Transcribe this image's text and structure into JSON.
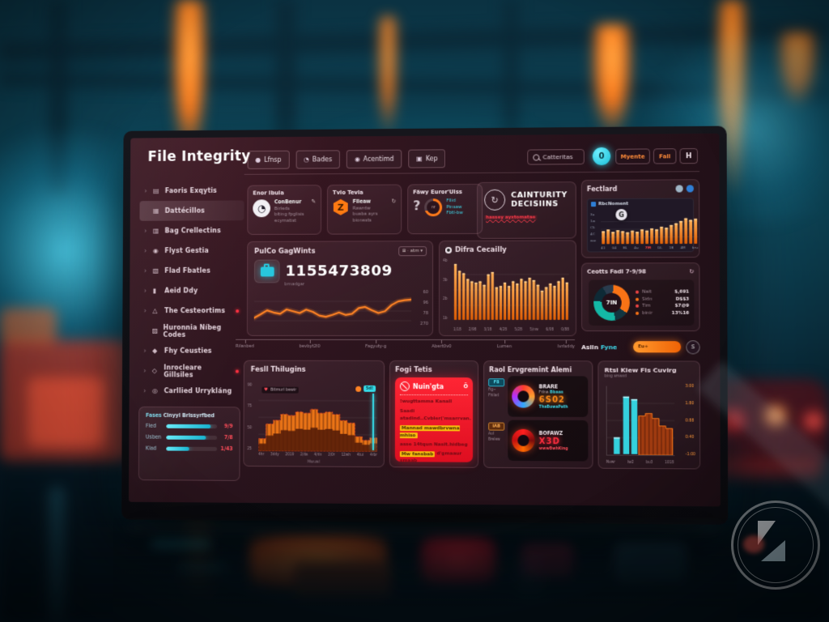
{
  "app": {
    "title": "File Integrity"
  },
  "header": {
    "nav": [
      {
        "icon": "●",
        "label": "Lfnsp"
      },
      {
        "icon": "◔",
        "label": "Bades"
      },
      {
        "icon": "◉",
        "label": "Acentimd"
      },
      {
        "icon": "▣",
        "label": "Kep"
      }
    ],
    "search": {
      "value": "Catteritas"
    },
    "badge": "0",
    "action1": "Myente",
    "action2": "Fail",
    "action3": "H"
  },
  "sidebar": {
    "items": [
      {
        "icon": "▤",
        "label": "Faoris Exqytis",
        "chevron": true
      },
      {
        "icon": "▦",
        "label": "Dattécillos",
        "active": true
      },
      {
        "icon": "▥",
        "label": "Bag Crellectins",
        "chevron": true
      },
      {
        "icon": "◉",
        "label": "Flyst Gestia",
        "chevron": true
      },
      {
        "icon": "▧",
        "label": "Flad Fbatles",
        "chevron": true
      },
      {
        "icon": "▮",
        "label": "Aeid Ddy",
        "chevron": true
      },
      {
        "icon": "△",
        "label": "The Cesteortims",
        "chevron": true,
        "dot": true
      },
      {
        "icon": "▨",
        "label": "Huronnia Níbeg Codes"
      },
      {
        "icon": "◆",
        "label": "Fhy Ceusties",
        "chevron": true
      },
      {
        "icon": "◇",
        "label": "Inrocleare Gillsiles",
        "chevron": true,
        "dot": true
      },
      {
        "icon": "◎",
        "label": "Carllied Urrykláng",
        "chevron": true
      }
    ],
    "panel": {
      "title_a": "Fases",
      "title_b": "Cinyyl Brissyrfbed",
      "bars": [
        {
          "label": "Fled",
          "pct": 88,
          "value": "9/9"
        },
        {
          "label": "Usben",
          "pct": 78,
          "value": "7/8"
        },
        {
          "label": "Klad",
          "pct": 46,
          "value": "1/43"
        }
      ]
    }
  },
  "stat_cards": [
    {
      "title": "Enor Ibuia",
      "icon": "clock",
      "corner": "✎",
      "lines": [
        {
          "t": "ConBenur",
          "c": "light"
        },
        {
          "t": "Birleds",
          "c": "muted"
        },
        {
          "t": "biting fpglisis",
          "c": "muted"
        },
        {
          "t": "ecymatist",
          "c": "muted"
        }
      ]
    },
    {
      "title": "Tvio Tevia",
      "icon": "hex",
      "corner": "↻",
      "lines": [
        {
          "t": "Fiieaw",
          "c": "light"
        },
        {
          "t": "Rawrdw",
          "c": "muted"
        },
        {
          "t": "buaba ayrs",
          "c": "muted"
        },
        {
          "t": "bionests",
          "c": "muted"
        }
      ]
    },
    {
      "title": "Fäwy Euror'Uiss",
      "icon": "gauge",
      "corner": "",
      "lines": [
        {
          "t": "Fllid",
          "c": "cyan"
        },
        {
          "t": "Pinsaw",
          "c": "cyan"
        },
        {
          "t": "Fbtl-bw",
          "c": "cyan"
        }
      ]
    }
  ],
  "security_card": {
    "line1": "CAINTURITY",
    "line2": "DECISIINS",
    "alert": "hassey ayxtomatae"
  },
  "fect_card": {
    "title": "Fectlard",
    "inner_label": "RbcNoment",
    "badge": "G",
    "yticks": [
      "3u",
      "1w",
      "C5",
      "4C",
      "ww"
    ],
    "xticks": [
      "41",
      "04",
      "BL",
      "4u",
      "7M",
      "DL",
      "1B",
      "4M",
      "bru"
    ],
    "red_xtick_index": 4
  },
  "pulse_card": {
    "title": "PulCo GagWints",
    "control": "⊞ · atm ▾",
    "number": "1155473809",
    "subtitle": "brnadgar",
    "yticks": [
      "60",
      "96",
      "78",
      "270"
    ]
  },
  "difra_card": {
    "title": "Difra Cecailly",
    "yticks": [
      "4b",
      "3b",
      "2b",
      "1b"
    ],
    "xticks": [
      "1/18",
      "2/98",
      "3/18",
      "4/28",
      "5/28",
      "5/nw",
      "6/08",
      "0/88"
    ]
  },
  "donut_card": {
    "title": "Ceotts Fadi 7-9/98",
    "refresh": "↻",
    "center": "7IN",
    "legend": [
      {
        "dot": "#ef4444",
        "label": "Nait",
        "value": "$,691"
      },
      {
        "dot": "#f97316",
        "label": "Sidn",
        "value": "D$$3"
      },
      {
        "dot": "#ef4444",
        "label": "Tim",
        "value": "$7@9"
      },
      {
        "dot": "#f97316",
        "label": "binir",
        "value": "13%16"
      }
    ]
  },
  "toggle_row": {
    "label_a": "Aslin",
    "label_b": "Fyne",
    "pill": "Eu+",
    "button": "S"
  },
  "timeline": {
    "ticks": [
      "Rilanbed",
      "bevbyt2l0",
      "Fagyuty-g",
      "Abert0v0",
      "Lumen",
      "Ivrlsddy"
    ]
  },
  "area_card": {
    "title": "Fesll Thilugins",
    "legend_icon": "♥",
    "legend": "Bitmurl bewir",
    "chip": "5d!",
    "yticks": [
      "90",
      "75",
      "50",
      "25"
    ],
    "xticks": [
      "4hr",
      "3ddy",
      "2019",
      "2/da",
      "4/dn",
      "2/0r",
      "12wh",
      "4tui",
      "4rbr"
    ],
    "xlabel": "Mwuwl"
  },
  "alert_card": {
    "title": "Fogi Tetis",
    "panel_title": "Nuin'gta",
    "corner": "Ö",
    "lines": [
      {
        "text": "!wugttamma Kanall",
        "style": "dark"
      },
      {
        "text": "Saadi atadind..Cvbler('msarrvan.",
        "style": "dark"
      },
      {
        "text": "Mannad mawdbrvwna mhiso",
        "style": "highlight"
      },
      {
        "text": "asse 14tqun Nasit.hidbeg",
        "style": "dark"
      },
      {
        "text": "Mw fansbab d'gmaaur smaab",
        "style": "mixed"
      }
    ]
  },
  "env_alerts": {
    "title": "Raol Ervgremint Alemi",
    "rows": [
      {
        "chip": "F8",
        "chip_color": "cyan",
        "side": [
          "Fig~",
          "Fhilad"
        ],
        "title": "BRARE",
        "sub": "Fdna",
        "sub_accent": "Bbaas",
        "big": "6S02",
        "big_color": "#ff8c1a",
        "foot": "ThaBuwaPath",
        "foot_color": "#3fd6e8",
        "swirl": "multi"
      },
      {
        "chip": "IAB",
        "chip_color": "orange",
        "side": [
          "Aul",
          "Brelew"
        ],
        "title": "BOFAWZ",
        "sub": "",
        "sub_accent": "",
        "big": "X3D",
        "big_color": "#ff2d3e",
        "foot": "wwwBwhKing",
        "foot_color": "#ff4d5a",
        "swirl": "red"
      }
    ]
  },
  "cover_card": {
    "title": "Rtsl Klew Fls Cuvirg",
    "subtitle": "bing smaxd",
    "yticks": [
      "3:00",
      "1:80",
      "0:88",
      "0:40",
      "-1:00"
    ],
    "xticks": [
      "Nvwr",
      "tw2",
      "bu3",
      "1018"
    ]
  },
  "chart_data": {
    "pulse": {
      "type": "line",
      "max": 100,
      "color": "#ff8324",
      "values": [
        30,
        42,
        55,
        48,
        44,
        58,
        52,
        46,
        57,
        50,
        38,
        34,
        40,
        48,
        40,
        44,
        62,
        66,
        55,
        46,
        52,
        72,
        84,
        88,
        90
      ]
    },
    "difra": {
      "type": "bar",
      "max": 100,
      "values": [
        96,
        84,
        80,
        70,
        66,
        64,
        66,
        60,
        78,
        82,
        56,
        58,
        64,
        58,
        66,
        62,
        70,
        66,
        72,
        68,
        60,
        50,
        56,
        62,
        58,
        66,
        72,
        64
      ]
    },
    "fect": {
      "type": "bar",
      "max": 100,
      "values": [
        46,
        52,
        44,
        50,
        46,
        42,
        48,
        44,
        52,
        48,
        56,
        52,
        62,
        58,
        68,
        74,
        82,
        92,
        86,
        90
      ]
    },
    "donut": {
      "type": "pie",
      "segments": [
        {
          "color": "#2a3b4d",
          "pct": 10
        },
        {
          "color": "#f97316",
          "pct": 33
        },
        {
          "color": "#123540",
          "pct": 12
        },
        {
          "color": "#14b8a6",
          "pct": 30
        },
        {
          "color": "#0e2a36",
          "pct": 15
        }
      ]
    },
    "area": {
      "type": "area2",
      "max": 100,
      "values": [
        18,
        42,
        48,
        58,
        56,
        62,
        60,
        66,
        60,
        62,
        58,
        48,
        44,
        22,
        16,
        20
      ]
    },
    "cover": {
      "type": "mixed",
      "max": 100,
      "bars": [
        26,
        90,
        86
      ],
      "bar_color": "#35dbe8",
      "area": [
        60,
        64,
        56,
        44,
        40
      ],
      "area_color": "#a63d10"
    },
    "gauge_pct": 68
  }
}
